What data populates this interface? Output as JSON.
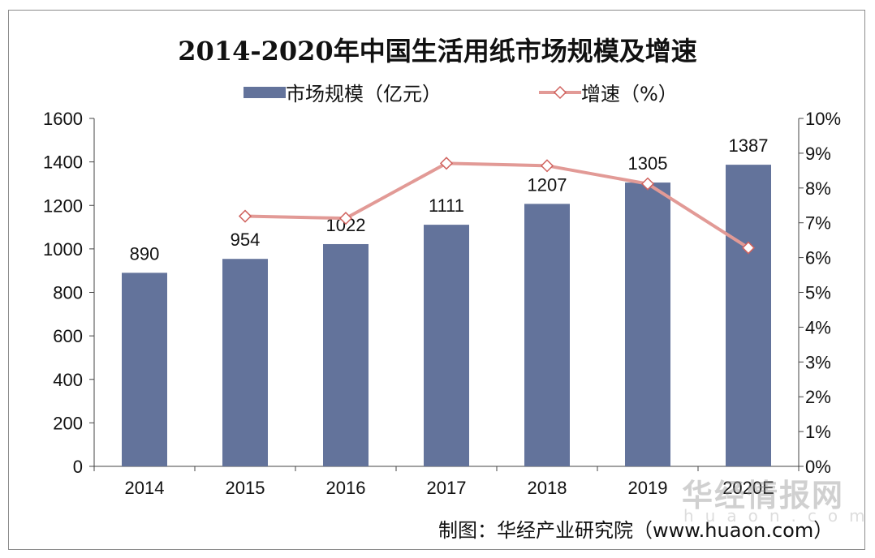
{
  "chart_data": {
    "type": "bar+line",
    "title": "2014-2020年中国生活用纸市场规模及增速",
    "categories": [
      "2014",
      "2015",
      "2016",
      "2017",
      "2018",
      "2019",
      "2020E"
    ],
    "series": [
      {
        "name": "市场规模（亿元）",
        "type": "bar",
        "axis": "left",
        "color": "#63739b",
        "values": [
          890,
          954,
          1022,
          1111,
          1207,
          1305,
          1387
        ]
      },
      {
        "name": "增速（%）",
        "type": "line",
        "axis": "right",
        "color": "#e29a96",
        "marker": "diamond-hollow",
        "values": [
          null,
          7.19,
          7.13,
          8.71,
          8.64,
          8.12,
          6.28
        ]
      }
    ],
    "y_left": {
      "range": [
        0,
        1600
      ],
      "ticks": [
        "0",
        "200",
        "400",
        "600",
        "800",
        "1000",
        "1200",
        "1400",
        "1600"
      ]
    },
    "y_right": {
      "range": [
        0,
        10
      ],
      "ticks": [
        "0%",
        "1%",
        "2%",
        "3%",
        "4%",
        "5%",
        "6%",
        "7%",
        "8%",
        "9%",
        "10%"
      ]
    },
    "grid": false,
    "legend": "top-center"
  },
  "source": "制图：华经产业研究院（www.huaon.com）",
  "watermark": {
    "text": "华经情报网",
    "subtext": "huaon.com"
  }
}
